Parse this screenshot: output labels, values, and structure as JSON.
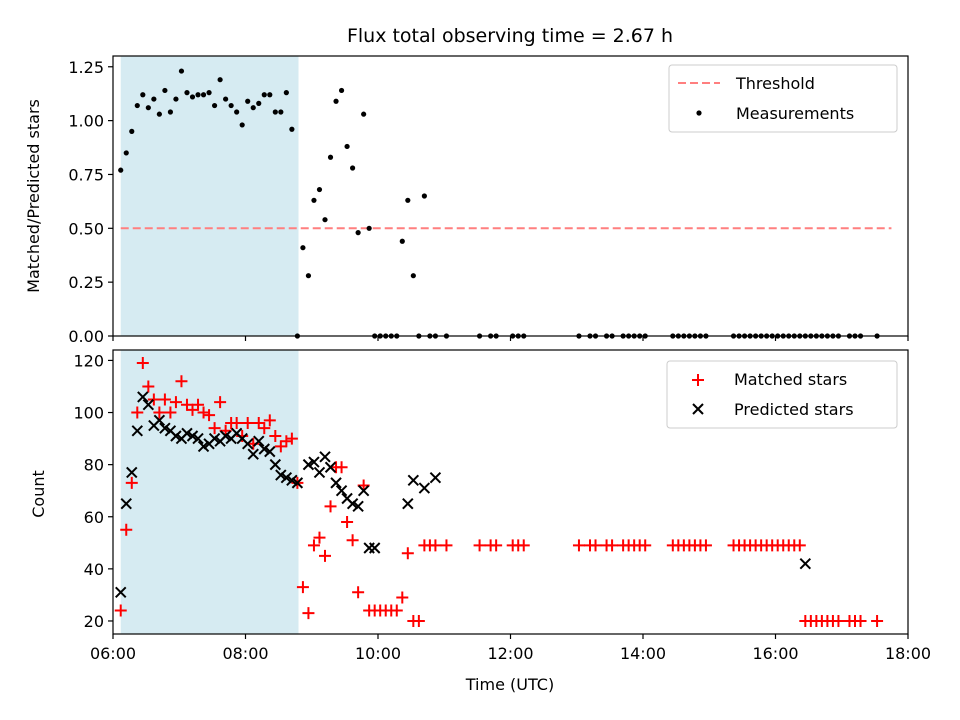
{
  "chart_data": {
    "type": "scatter",
    "title": "Flux total observing time = 2.67 h",
    "xlabel": "Time (UTC)",
    "x_unit": "hours UTC",
    "xlim": [
      "06:00",
      "18:00"
    ],
    "x_ticks": [
      "06:00",
      "08:00",
      "10:00",
      "12:00",
      "14:00",
      "16:00",
      "18:00"
    ],
    "shaded_interval": [
      "06:07",
      "08:48"
    ],
    "shade_color": "#add8e6",
    "panels": [
      {
        "ylabel": "Matched/Predicted stars",
        "ylim": [
          0,
          1.3
        ],
        "y_ticks": [
          "0.00",
          "0.25",
          "0.50",
          "0.75",
          "1.00",
          "1.25"
        ],
        "legend": "top-right",
        "series": [
          {
            "name": "Threshold",
            "kind": "dashed-line",
            "color": "#ff7f7f",
            "x": [
              "06:07",
              "17:45"
            ],
            "y": [
              0.5,
              0.5
            ]
          },
          {
            "name": "Measurements",
            "kind": "dot",
            "color": "#000000",
            "x": [
              "06:07",
              "06:12",
              "06:17",
              "06:22",
              "06:27",
              "06:32",
              "06:37",
              "06:42",
              "06:47",
              "06:52",
              "06:57",
              "07:02",
              "07:07",
              "07:12",
              "07:17",
              "07:22",
              "07:27",
              "07:32",
              "07:37",
              "07:42",
              "07:47",
              "07:52",
              "07:57",
              "08:02",
              "08:07",
              "08:12",
              "08:17",
              "08:22",
              "08:27",
              "08:32",
              "08:37",
              "08:42",
              "08:47",
              "08:52",
              "08:57",
              "09:02",
              "09:07",
              "09:12",
              "09:17",
              "09:22",
              "09:27",
              "09:32",
              "09:37",
              "09:42",
              "09:47",
              "09:52",
              "09:57",
              "10:02",
              "10:07",
              "10:12",
              "10:17",
              "10:22",
              "10:27",
              "10:32",
              "10:37",
              "10:42",
              "10:47",
              "10:52",
              "11:02",
              "11:32",
              "11:42",
              "11:47",
              "12:02",
              "12:07",
              "12:12",
              "13:02",
              "13:12",
              "13:17",
              "13:27",
              "13:32",
              "13:42",
              "13:47",
              "13:52",
              "13:57",
              "14:02",
              "14:27",
              "14:32",
              "14:37",
              "14:42",
              "14:47",
              "14:52",
              "14:57",
              "15:22",
              "15:27",
              "15:32",
              "15:37",
              "15:42",
              "15:47",
              "15:52",
              "15:57",
              "16:02",
              "16:07",
              "16:12",
              "16:17",
              "16:22",
              "16:27",
              "16:32",
              "16:37",
              "16:42",
              "16:47",
              "16:52",
              "16:57",
              "17:07",
              "17:12",
              "17:17",
              "17:32"
            ],
            "y": [
              0.77,
              0.85,
              0.95,
              1.07,
              1.12,
              1.06,
              1.1,
              1.03,
              1.14,
              1.04,
              1.1,
              1.23,
              1.13,
              1.11,
              1.12,
              1.12,
              1.13,
              1.07,
              1.19,
              1.1,
              1.07,
              1.04,
              0.98,
              1.09,
              1.06,
              1.08,
              1.12,
              1.12,
              1.04,
              1.04,
              1.13,
              0.96,
              0.0,
              0.41,
              0.28,
              0.63,
              0.68,
              0.54,
              0.83,
              1.09,
              1.14,
              0.88,
              0.78,
              0.48,
              1.03,
              0.5,
              0.0,
              0.0,
              0.0,
              0.0,
              0.0,
              0.44,
              0.63,
              0.28,
              0.0,
              0.65,
              0.0,
              0.0,
              0.0,
              0.0,
              0.0,
              0.0,
              0.0,
              0.0,
              0.0,
              0.0,
              0.0,
              0.0,
              0.0,
              0.0,
              0.0,
              0.0,
              0.0,
              0.0,
              0.0,
              0.0,
              0.0,
              0.0,
              0.0,
              0.0,
              0.0,
              0.0,
              0.0,
              0.0,
              0.0,
              0.0,
              0.0,
              0.0,
              0.0,
              0.0,
              0.0,
              0.0,
              0.0,
              0.0,
              0.0,
              0.0,
              0.0,
              0.0,
              0.0,
              0.0,
              0.0,
              0.0,
              0.0,
              0.0,
              0.0,
              0.0
            ]
          }
        ]
      },
      {
        "ylabel": "Count",
        "ylim": [
          15,
          124
        ],
        "y_ticks": [
          "20",
          "40",
          "60",
          "80",
          "100",
          "120"
        ],
        "legend": "top-right",
        "series": [
          {
            "name": "Matched stars",
            "kind": "plus",
            "color": "#ff0000",
            "x": [
              "06:07",
              "06:12",
              "06:17",
              "06:22",
              "06:27",
              "06:32",
              "06:37",
              "06:42",
              "06:47",
              "06:52",
              "06:57",
              "07:02",
              "07:07",
              "07:12",
              "07:17",
              "07:22",
              "07:27",
              "07:32",
              "07:37",
              "07:42",
              "07:47",
              "07:52",
              "07:57",
              "08:02",
              "08:07",
              "08:12",
              "08:17",
              "08:22",
              "08:27",
              "08:32",
              "08:37",
              "08:42",
              "08:47",
              "08:52",
              "08:57",
              "09:02",
              "09:07",
              "09:12",
              "09:17",
              "09:22",
              "09:27",
              "09:32",
              "09:37",
              "09:42",
              "09:47",
              "09:52",
              "09:57",
              "10:02",
              "10:07",
              "10:12",
              "10:17",
              "10:22",
              "10:27",
              "10:32",
              "10:37",
              "10:42",
              "10:47",
              "10:52",
              "11:02",
              "11:32",
              "11:42",
              "11:47",
              "12:02",
              "12:07",
              "12:12",
              "13:02",
              "13:12",
              "13:17",
              "13:27",
              "13:32",
              "13:42",
              "13:47",
              "13:52",
              "13:57",
              "14:02",
              "14:27",
              "14:32",
              "14:37",
              "14:42",
              "14:47",
              "14:52",
              "14:57",
              "15:22",
              "15:27",
              "15:32",
              "15:37",
              "15:42",
              "15:47",
              "15:52",
              "15:57",
              "16:02",
              "16:07",
              "16:12",
              "16:17",
              "16:22",
              "16:27",
              "16:32",
              "16:37",
              "16:42",
              "16:47",
              "16:52",
              "16:57",
              "17:07",
              "17:12",
              "17:17",
              "17:32"
            ],
            "y": [
              24,
              55,
              73,
              100,
              119,
              110,
              105,
              100,
              105,
              100,
              104,
              112,
              103,
              101,
              103,
              100,
              99,
              94,
              104,
              93,
              96,
              96,
              91,
              96,
              88,
              96,
              94,
              97,
              91,
              87,
              89,
              90,
              73,
              33,
              23,
              49,
              52,
              45,
              64,
              79,
              79,
              58,
              51,
              31,
              72,
              24,
              24,
              24,
              24,
              24,
              24,
              29,
              46,
              20,
              20,
              49,
              49,
              49,
              49,
              49,
              49,
              49,
              49,
              49,
              49,
              49,
              49,
              49,
              49,
              49,
              49,
              49,
              49,
              49,
              49,
              49,
              49,
              49,
              49,
              49,
              49,
              49,
              49,
              49,
              49,
              49,
              49,
              49,
              49,
              49,
              49,
              49,
              49,
              49,
              49,
              20,
              20,
              20,
              20,
              20,
              20,
              20,
              20,
              20,
              20,
              20
            ]
          },
          {
            "name": "Predicted stars",
            "kind": "x",
            "color": "#000000",
            "x": [
              "06:07",
              "06:12",
              "06:17",
              "06:22",
              "06:27",
              "06:32",
              "06:37",
              "06:42",
              "06:47",
              "06:52",
              "06:57",
              "07:02",
              "07:07",
              "07:12",
              "07:17",
              "07:22",
              "07:27",
              "07:32",
              "07:37",
              "07:42",
              "07:47",
              "07:52",
              "07:57",
              "08:02",
              "08:07",
              "08:12",
              "08:17",
              "08:22",
              "08:27",
              "08:32",
              "08:37",
              "08:42",
              "08:47",
              "08:57",
              "09:02",
              "09:07",
              "09:12",
              "09:17",
              "09:22",
              "09:27",
              "09:32",
              "09:37",
              "09:42",
              "09:47",
              "09:52",
              "09:57",
              "10:27",
              "10:32",
              "10:42",
              "10:52",
              "16:27"
            ],
            "y": [
              31,
              65,
              77,
              93,
              106,
              103,
              95,
              97,
              94,
              93,
              91,
              90,
              92,
              91,
              90,
              87,
              88,
              90,
              89,
              91,
              90,
              92,
              90,
              88,
              84,
              89,
              86,
              85,
              80,
              76,
              75,
              74,
              73,
              80,
              81,
              77,
              83,
              79,
              73,
              70,
              67,
              65,
              64,
              70,
              48,
              48,
              65,
              74,
              71,
              75,
              42
            ]
          }
        ]
      }
    ]
  }
}
